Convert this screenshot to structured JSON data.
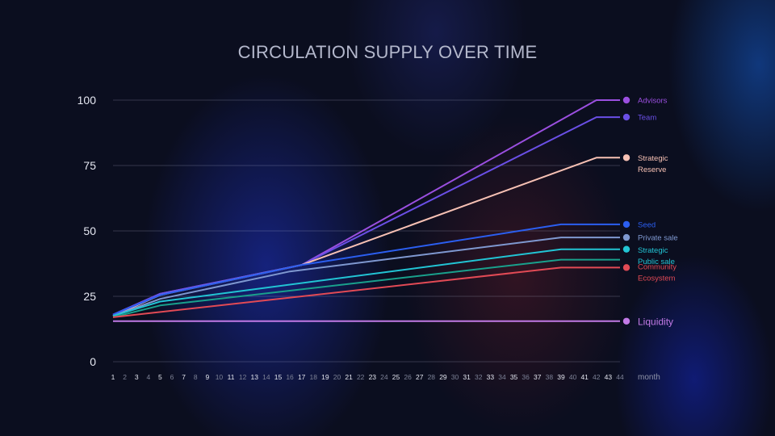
{
  "chart_data": {
    "type": "line",
    "title": "CIRCULATION SUPPLY OVER TIME",
    "xlabel": "month",
    "ylabel": "",
    "ylim": [
      0,
      100
    ],
    "yticks": [
      0,
      25,
      50,
      75,
      100
    ],
    "xticks": [
      1,
      2,
      3,
      4,
      5,
      6,
      7,
      8,
      9,
      10,
      11,
      12,
      13,
      14,
      15,
      16,
      17,
      18,
      19,
      20,
      21,
      22,
      23,
      24,
      25,
      26,
      27,
      28,
      29,
      30,
      31,
      32,
      33,
      34,
      35,
      36,
      37,
      38,
      39,
      40,
      41,
      42,
      43,
      44
    ],
    "grid": true,
    "legend_position": "right",
    "series": [
      {
        "name": "Advisors",
        "legend_lines": [
          "Advisors"
        ],
        "color": "#9b4fe0",
        "points": [
          [
            1,
            18
          ],
          [
            5,
            26
          ],
          [
            17,
            37
          ],
          [
            42,
            100
          ],
          [
            44,
            100
          ]
        ]
      },
      {
        "name": "Team",
        "legend_lines": [
          "Team"
        ],
        "color": "#6a4fe6",
        "points": [
          [
            1,
            18
          ],
          [
            5,
            26
          ],
          [
            17,
            37
          ],
          [
            42,
            93.5
          ],
          [
            44,
            93.5
          ]
        ]
      },
      {
        "name": "Strategic Reserve",
        "legend_lines": [
          "Strategic",
          "Reserve"
        ],
        "color": "#f7c1b4",
        "points": [
          [
            1,
            17.5
          ],
          [
            5,
            25.5
          ],
          [
            17,
            37
          ],
          [
            42,
            78
          ],
          [
            44,
            78
          ]
        ]
      },
      {
        "name": "Seed",
        "legend_lines": [
          "Seed"
        ],
        "color": "#2b5ef0",
        "points": [
          [
            1,
            18
          ],
          [
            5,
            25.5
          ],
          [
            17,
            37
          ],
          [
            39,
            52.5
          ],
          [
            44,
            52.5
          ]
        ]
      },
      {
        "name": "Private sale",
        "legend_lines": [
          "Private sale"
        ],
        "color": "#7f98d0",
        "points": [
          [
            1,
            17.5
          ],
          [
            5,
            24
          ],
          [
            16,
            34.5
          ],
          [
            39,
            47.5
          ],
          [
            44,
            47.5
          ]
        ]
      },
      {
        "name": "Strategic Public sale",
        "legend_lines": [
          "Strategic",
          "Public sale"
        ],
        "color": "#22c4d4",
        "points": [
          [
            1,
            17.5
          ],
          [
            5,
            23
          ],
          [
            39,
            43
          ],
          [
            44,
            43
          ]
        ]
      },
      {
        "name": "Community Ecosystem (teal)",
        "legend_lines": [],
        "color": "#19a08c",
        "points": [
          [
            1,
            17
          ],
          [
            5,
            21.5
          ],
          [
            39,
            39
          ],
          [
            44,
            39
          ]
        ]
      },
      {
        "name": "Community Ecosystem",
        "legend_lines": [
          "Community",
          "Ecosystem"
        ],
        "color": "#e24a55",
        "points": [
          [
            1,
            17
          ],
          [
            39,
            36
          ],
          [
            44,
            36
          ]
        ]
      },
      {
        "name": "Liquidity",
        "legend_lines": [
          "Liquidity"
        ],
        "color": "#c27ae6",
        "points": [
          [
            1,
            15.5
          ],
          [
            44,
            15.5
          ]
        ]
      }
    ]
  }
}
